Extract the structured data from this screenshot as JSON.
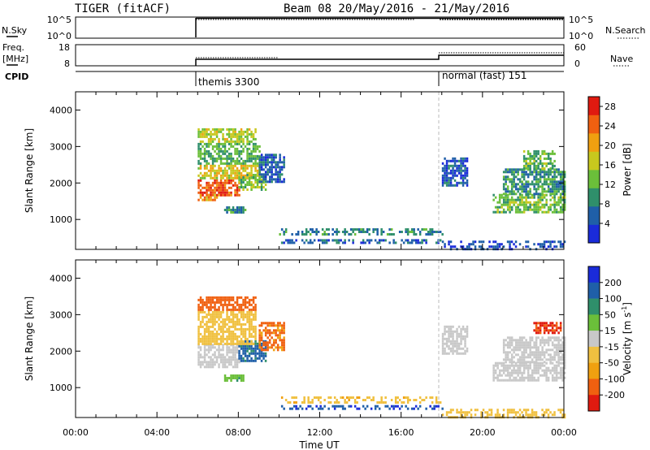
{
  "header": {
    "radar": "TIGER (fitACF)",
    "beam_date": "Beam 08 20/May/2016 - 21/May/2016"
  },
  "status_panels": {
    "nsky": {
      "label": "N.Sky",
      "ticks": [
        "10^5",
        "10^0"
      ]
    },
    "nsearch": {
      "label": "N.Search",
      "ticks": [
        "10^5",
        "10^0"
      ]
    },
    "freq": {
      "label_line1": "Freq.",
      "label_line2": "[MHz]",
      "ticks": [
        "18",
        "8"
      ]
    },
    "nave": {
      "label": "Nave",
      "ticks": [
        "60",
        "0"
      ]
    },
    "cpid": {
      "label": "CPID",
      "modes": [
        {
          "name": "themis 3300",
          "start_hour": 6.0,
          "end_hour": 18.0
        },
        {
          "name": "normal (fast) 151",
          "start_hour": 18.0,
          "end_hour": 24.0
        }
      ]
    }
  },
  "chart_data": [
    {
      "type": "heatmap",
      "name": "power",
      "ylabel": "Slant Range [km]",
      "yticks": [
        "1000",
        "2000",
        "3000",
        "4000"
      ],
      "ylim": [
        180,
        4500
      ],
      "xlim": [
        0,
        24
      ],
      "colorbar": {
        "label": "Power [dB]",
        "ticks": [
          "4",
          "8",
          "12",
          "16",
          "20",
          "24",
          "28"
        ],
        "range": [
          0,
          30
        ],
        "colors": [
          "#1a2bd9",
          "#1f5fa8",
          "#2f8f6b",
          "#6bbf3a",
          "#c8c81e",
          "#f0a010",
          "#f06010",
          "#e01a10"
        ]
      },
      "regions": [
        {
          "t": [
            6.0,
            8.0
          ],
          "r": [
            1650,
            2100
          ],
          "v": 27
        },
        {
          "t": [
            6.0,
            7.0
          ],
          "r": [
            1500,
            1700
          ],
          "v": 22
        },
        {
          "t": [
            6.0,
            9.0
          ],
          "r": [
            2100,
            2500
          ],
          "v": 19
        },
        {
          "t": [
            8.0,
            9.3
          ],
          "r": [
            1800,
            2250
          ],
          "v": 15
        },
        {
          "t": [
            6.0,
            9.0
          ],
          "r": [
            2500,
            3100
          ],
          "v": 12
        },
        {
          "t": [
            6.0,
            8.8
          ],
          "r": [
            3100,
            3500
          ],
          "v": 17
        },
        {
          "t": [
            7.3,
            8.3
          ],
          "r": [
            1200,
            1360
          ],
          "v": 9
        },
        {
          "t": [
            9.0,
            10.2
          ],
          "r": [
            2000,
            2800
          ],
          "v": 6
        },
        {
          "t": [
            10.0,
            18.0
          ],
          "r": [
            560,
            760
          ],
          "v": 9
        },
        {
          "t": [
            10.0,
            18.0
          ],
          "r": [
            340,
            460
          ],
          "v": 6
        },
        {
          "t": [
            18.0,
            24.0
          ],
          "r": [
            200,
            420
          ],
          "v": 4
        },
        {
          "t": [
            18.0,
            19.2
          ],
          "r": [
            1900,
            2700
          ],
          "v": 5
        },
        {
          "t": [
            20.5,
            24.0
          ],
          "r": [
            1200,
            1700
          ],
          "v": 14
        },
        {
          "t": [
            21.0,
            24.0
          ],
          "r": [
            1700,
            2400
          ],
          "v": 10
        },
        {
          "t": [
            22.0,
            23.5
          ],
          "r": [
            2400,
            2900
          ],
          "v": 13
        }
      ]
    },
    {
      "type": "heatmap",
      "name": "velocity",
      "ylabel": "Slant Range [km]",
      "yticks": [
        "1000",
        "2000",
        "3000",
        "4000"
      ],
      "ylim": [
        180,
        4500
      ],
      "xlim": [
        0,
        24
      ],
      "xticks": [
        "00:00",
        "04:00",
        "08:00",
        "12:00",
        "16:00",
        "20:00",
        "00:00"
      ],
      "xlabel": "Time UT",
      "colorbar": {
        "label_main": "Velocity [m s",
        "label_sup": "-1",
        "label_end": "]",
        "ticks": [
          "200",
          "100",
          "50",
          "15",
          "-15",
          "-50",
          "-100",
          "-200"
        ],
        "colors": [
          "#1a2bd9",
          "#1f5fa8",
          "#2f8f6b",
          "#6bbf3a",
          "#c8c8c8",
          "#f0c040",
          "#f0a010",
          "#f06010",
          "#e01a10"
        ]
      },
      "regions": [
        {
          "t": [
            6.0,
            8.0
          ],
          "r": [
            1550,
            2200
          ],
          "v": 0
        },
        {
          "t": [
            8.0,
            9.3
          ],
          "r": [
            1700,
            2300
          ],
          "v": 120
        },
        {
          "t": [
            6.0,
            8.8
          ],
          "r": [
            2200,
            3100
          ],
          "v": -30
        },
        {
          "t": [
            6.0,
            8.8
          ],
          "r": [
            3100,
            3500
          ],
          "v": -150
        },
        {
          "t": [
            7.3,
            8.3
          ],
          "r": [
            1200,
            1360
          ],
          "v": 40
        },
        {
          "t": [
            9.0,
            10.2
          ],
          "r": [
            2000,
            2800
          ],
          "v": -120
        },
        {
          "t": [
            10.0,
            18.0
          ],
          "r": [
            560,
            760
          ],
          "v": -40
        },
        {
          "t": [
            10.0,
            18.0
          ],
          "r": [
            420,
            520
          ],
          "v": 180
        },
        {
          "t": [
            18.0,
            24.0
          ],
          "r": [
            200,
            420
          ],
          "v": -30
        },
        {
          "t": [
            18.0,
            19.2
          ],
          "r": [
            1900,
            2700
          ],
          "v": 5
        },
        {
          "t": [
            20.5,
            24.0
          ],
          "r": [
            1200,
            1700
          ],
          "v": 0
        },
        {
          "t": [
            21.0,
            24.0
          ],
          "r": [
            1700,
            2400
          ],
          "v": -5
        },
        {
          "t": [
            22.5,
            23.8
          ],
          "r": [
            2500,
            2800
          ],
          "v": -220
        }
      ]
    }
  ]
}
